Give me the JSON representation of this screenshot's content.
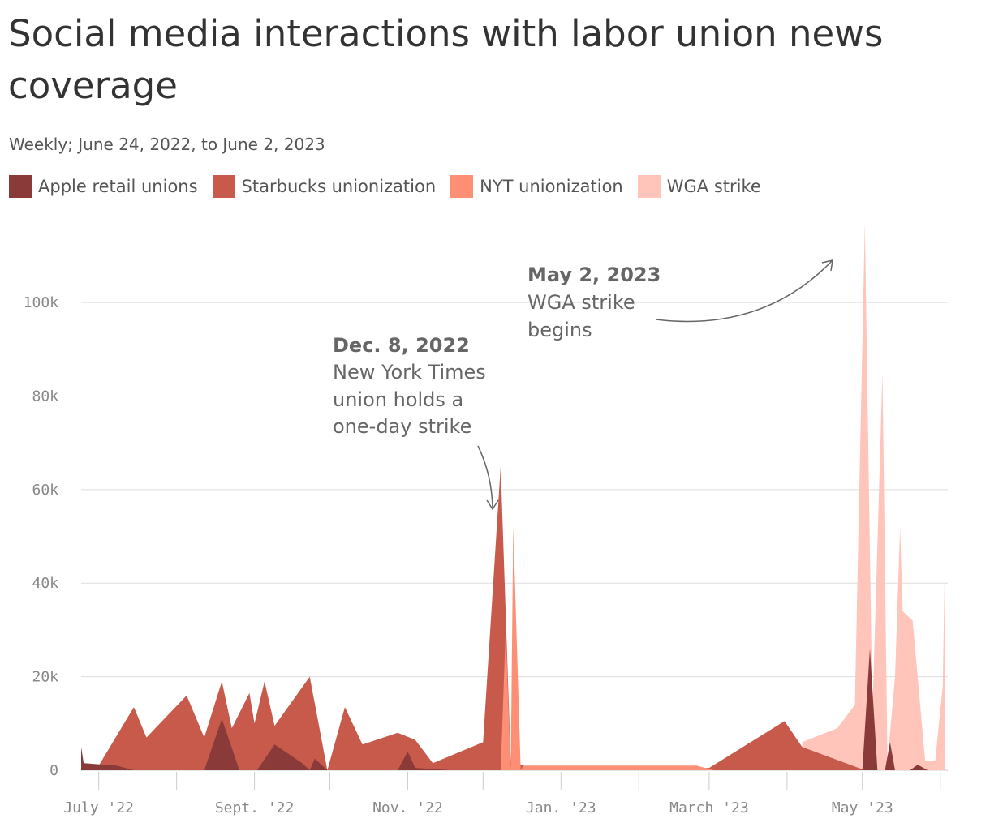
{
  "title": "Social media interactions with labor union news coverage",
  "subtitle": "Weekly; June 24, 2022, to June 2, 2023",
  "colors": {
    "apple": "#8b3a3a",
    "starbucks": "#c75a4a",
    "nyt": "#fc8f74",
    "wga": "#ffc4ba",
    "grid": "#dddddd",
    "axis_text": "#888888",
    "annotation": "#666666"
  },
  "chart_data": {
    "type": "area",
    "title": "Social media interactions with labor union news coverage",
    "subtitle": "Weekly; June 24, 2022, to June 2, 2023",
    "x_ticks": [
      "July '22",
      "Sept. '22",
      "Nov. '22",
      "Jan. '23",
      "March '23",
      "May '23"
    ],
    "y_ticks": [
      "0",
      "20k",
      "40k",
      "60k",
      "80k",
      "100k"
    ],
    "ylim": [
      0,
      117000
    ],
    "grid": true,
    "legend_position": "top-left",
    "series": [
      {
        "name": "Apple retail unions",
        "color": "#8b3a3a",
        "points": [
          [
            "2022-06-24",
            5000
          ],
          [
            "2022-06-25",
            1500
          ],
          [
            "2022-07-08",
            1000
          ],
          [
            "2022-07-15",
            0
          ],
          [
            "2022-08-12",
            0
          ],
          [
            "2022-08-19",
            11000
          ],
          [
            "2022-08-26",
            0
          ],
          [
            "2022-09-02",
            0
          ],
          [
            "2022-09-09",
            5500
          ],
          [
            "2022-09-20",
            1500
          ],
          [
            "2022-09-23",
            0
          ],
          [
            "2022-09-25",
            2500
          ],
          [
            "2022-09-30",
            0
          ],
          [
            "2022-10-28",
            0
          ],
          [
            "2022-11-01",
            4000
          ],
          [
            "2022-11-04",
            500
          ],
          [
            "2022-11-18",
            0
          ],
          [
            "2023-05-01",
            0
          ],
          [
            "2023-05-04",
            26000
          ],
          [
            "2023-05-07",
            0
          ],
          [
            "2023-05-10",
            0
          ],
          [
            "2023-05-12",
            6000
          ],
          [
            "2023-05-14",
            0
          ],
          [
            "2023-05-20",
            0
          ],
          [
            "2023-05-23",
            1200
          ],
          [
            "2023-05-27",
            0
          ]
        ]
      },
      {
        "name": "Starbucks unionization",
        "color": "#c75a4a",
        "points": [
          [
            "2022-06-24",
            0
          ],
          [
            "2022-07-01",
            1000
          ],
          [
            "2022-07-15",
            13500
          ],
          [
            "2022-07-20",
            7000
          ],
          [
            "2022-08-05",
            16000
          ],
          [
            "2022-08-12",
            7000
          ],
          [
            "2022-08-19",
            19000
          ],
          [
            "2022-08-23",
            9000
          ],
          [
            "2022-08-30",
            16500
          ],
          [
            "2022-09-01",
            10000
          ],
          [
            "2022-09-05",
            19000
          ],
          [
            "2022-09-09",
            9500
          ],
          [
            "2022-09-23",
            20000
          ],
          [
            "2022-09-30",
            0
          ],
          [
            "2022-10-07",
            13500
          ],
          [
            "2022-10-14",
            5500
          ],
          [
            "2022-10-28",
            8000
          ],
          [
            "2022-11-04",
            6500
          ],
          [
            "2022-11-11",
            1500
          ],
          [
            "2022-12-01",
            6000
          ],
          [
            "2022-12-08",
            65000
          ],
          [
            "2022-12-12",
            2000
          ],
          [
            "2022-12-20",
            500
          ],
          [
            "2023-03-01",
            500
          ],
          [
            "2023-03-31",
            10500
          ],
          [
            "2023-04-07",
            5000
          ],
          [
            "2023-05-02",
            0
          ]
        ]
      },
      {
        "name": "NYT unionization",
        "color": "#fc8f74",
        "points": [
          [
            "2022-12-08",
            0
          ],
          [
            "2022-12-10",
            30000
          ],
          [
            "2022-12-12",
            0
          ],
          [
            "2022-12-13",
            52000
          ],
          [
            "2022-12-16",
            0
          ],
          [
            "2022-12-17",
            1000
          ],
          [
            "2023-02-24",
            1000
          ],
          [
            "2023-03-03",
            0
          ]
        ]
      },
      {
        "name": "WGA strike",
        "color": "#ffc4ba",
        "points": [
          [
            "2023-04-07",
            6000
          ],
          [
            "2023-04-21",
            9000
          ],
          [
            "2023-04-28",
            14000
          ],
          [
            "2023-05-02",
            117000
          ],
          [
            "2023-05-05",
            12000
          ],
          [
            "2023-05-09",
            85000
          ],
          [
            "2023-05-11",
            2000
          ],
          [
            "2023-05-14",
            20000
          ],
          [
            "2023-05-16",
            52000
          ],
          [
            "2023-05-17",
            34000
          ],
          [
            "2023-05-21",
            32000
          ],
          [
            "2023-05-26",
            2000
          ],
          [
            "2023-05-30",
            2000
          ],
          [
            "2023-06-02",
            18000
          ],
          [
            "2023-06-03",
            50000
          ]
        ]
      }
    ],
    "annotations": [
      {
        "date_label": "Dec. 8, 2022",
        "lines": [
          "New York Times",
          "union holds a",
          "one-day strike"
        ]
      },
      {
        "date_label": "May 2, 2023",
        "lines": [
          "WGA strike",
          "begins"
        ]
      }
    ]
  }
}
